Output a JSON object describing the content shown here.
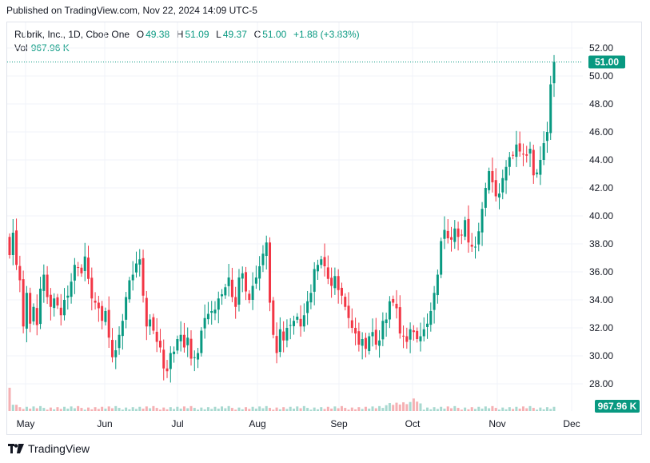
{
  "published": "Published on TradingView.com, Nov 22, 2024 14:09 UTC-5",
  "legend": {
    "symbol": "Rubrik, Inc., 1D, Cboe One",
    "o_label": "O",
    "o": "49.38",
    "h_label": "H",
    "h": "51.09",
    "l_label": "L",
    "l": "49.37",
    "c_label": "C",
    "c": "51.00",
    "change": "+1.88 (+3.83%)",
    "vol_label": "Vol",
    "vol": "967.96 K"
  },
  "price_tag": "51.00",
  "volume_tag": "967.96 K",
  "brand": "TradingView",
  "colors": {
    "up": "#089981",
    "down": "#f23645",
    "up_vol": "#a8d9d0",
    "down_vol": "#f5b0b3",
    "grid": "#f0f3fa"
  },
  "chart_data": {
    "type": "candlestick",
    "y_ticks": [
      "28.00",
      "30.00",
      "32.00",
      "34.00",
      "36.00",
      "38.00",
      "40.00",
      "42.00",
      "44.00",
      "46.00",
      "48.00",
      "50.00",
      "52.00"
    ],
    "x_labels": [
      "May",
      "Jun",
      "Jul",
      "Aug",
      "Sep",
      "Oct",
      "Nov",
      "Dec"
    ],
    "ylim": [
      27,
      53
    ],
    "last_price": 51.0,
    "closes": [
      37.2,
      38.8,
      36.5,
      35.4,
      32.1,
      34.5,
      32.3,
      33.5,
      32.2,
      34.8,
      35.8,
      34.2,
      33.5,
      34.1,
      33.6,
      32.9,
      34.0,
      34.3,
      35.3,
      36.5,
      36.3,
      35.9,
      37.1,
      35.5,
      34.1,
      33.8,
      33.4,
      32.5,
      33.2,
      31.3,
      29.9,
      30.4,
      31.5,
      32.5,
      34.2,
      35.4,
      35.8,
      36.6,
      36.9,
      34.3,
      32.1,
      32.6,
      31.8,
      31.0,
      30.6,
      29.1,
      28.9,
      30.2,
      30.3,
      31.2,
      31.5,
      30.6,
      31.3,
      29.8,
      29.9,
      30.2,
      31.8,
      32.7,
      33.0,
      33.2,
      33.3,
      34.1,
      34.4,
      34.9,
      35.6,
      34.2,
      33.5,
      35.6,
      35.9,
      34.6,
      34.0,
      35.0,
      35.6,
      36.4,
      37.3,
      38.1,
      33.8,
      31.5,
      30.2,
      31.9,
      31.1,
      32.0,
      32.2,
      32.5,
      32.8,
      32.1,
      32.9,
      33.9,
      34.5,
      36.2,
      36.5,
      36.9,
      36.4,
      35.5,
      35.0,
      35.7,
      34.7,
      34.3,
      33.5,
      32.7,
      32.0,
      31.6,
      30.8,
      31.2,
      30.5,
      31.4,
      31.7,
      30.8,
      31.1,
      32.5,
      32.6,
      33.9,
      33.8,
      33.4,
      31.6,
      31.4,
      31.0,
      31.9,
      31.7,
      31.2,
      31.4,
      31.9,
      32.3,
      33.2,
      34.5,
      35.8,
      38.2,
      39.0,
      38.4,
      38.3,
      39.1,
      38.5,
      38.6,
      39.7,
      38.1,
      37.8,
      37.8,
      38.9,
      40.5,
      42.0,
      43.2,
      42.4,
      41.4,
      41.6,
      42.7,
      43.5,
      44.2,
      44.3,
      45.1,
      44.6,
      44.4,
      44.3,
      44.8,
      42.9,
      43.1,
      44.0,
      45.2,
      46.0,
      49.4,
      51.0
    ],
    "volume_unit": "K",
    "volume_last": 967.96
  }
}
